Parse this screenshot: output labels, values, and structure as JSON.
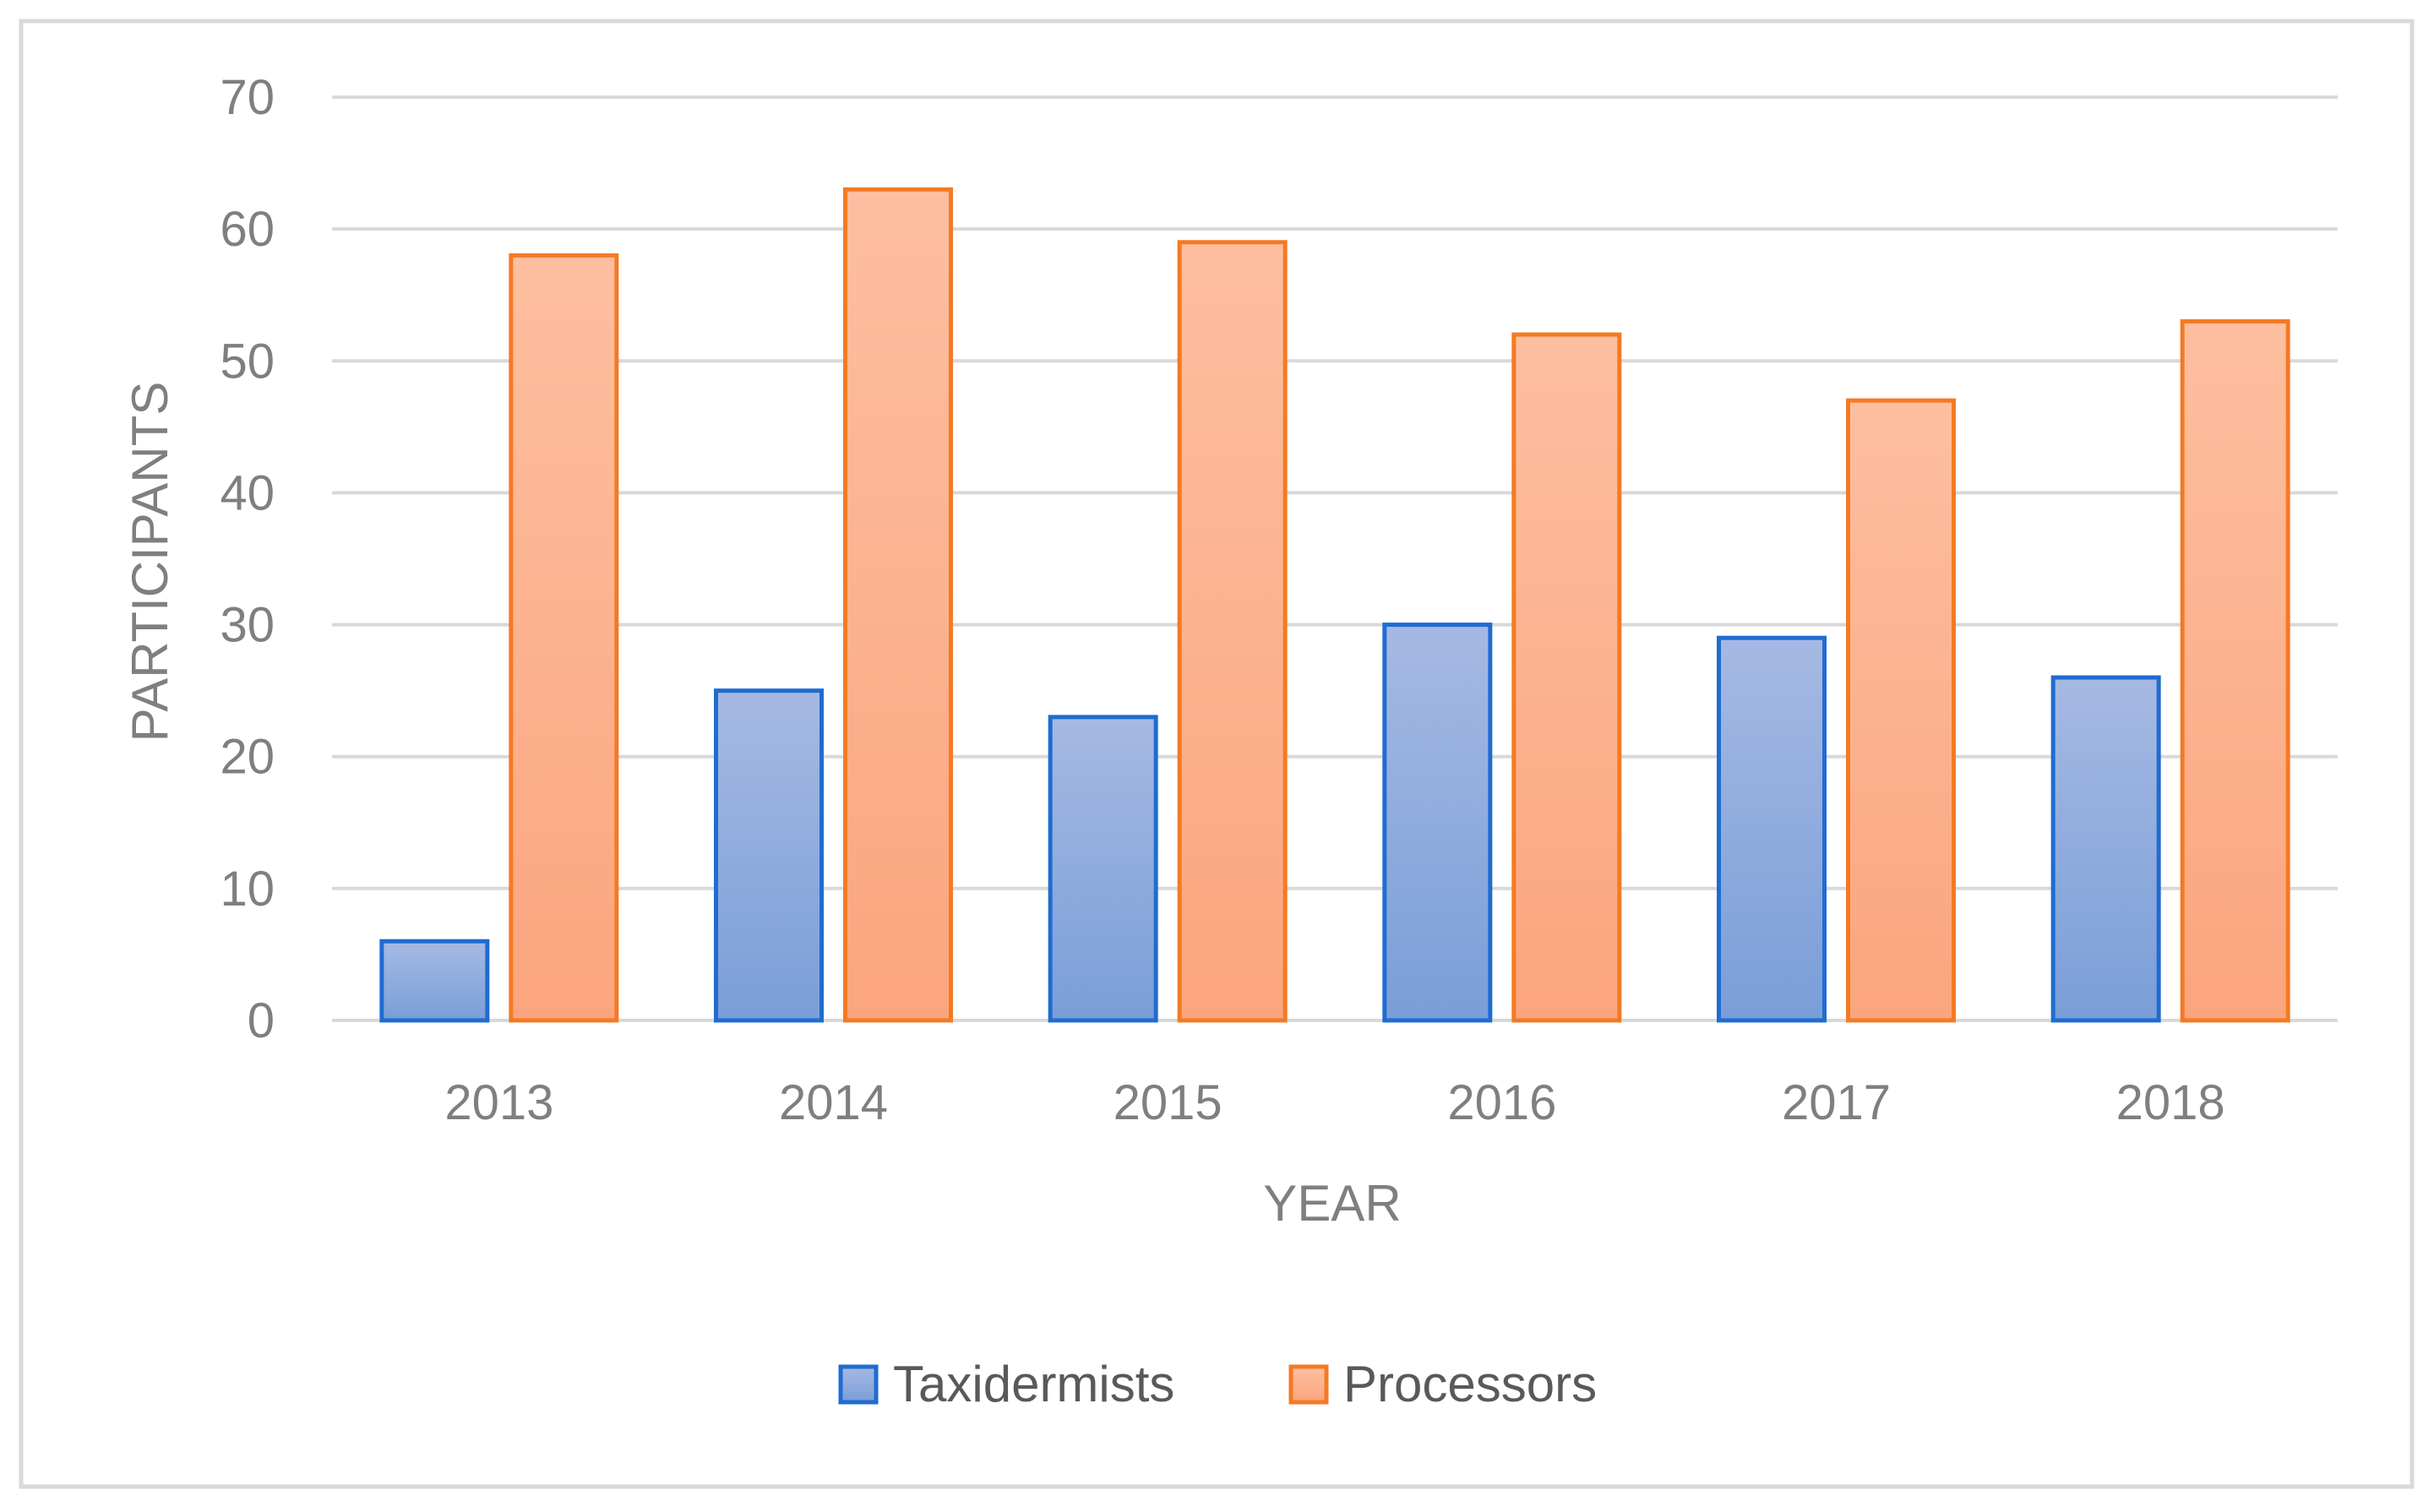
{
  "chart_data": {
    "type": "bar",
    "title": "",
    "xlabel": "YEAR",
    "ylabel": "PARTICIPANTS",
    "categories": [
      "2013",
      "2014",
      "2015",
      "2016",
      "2017",
      "2018"
    ],
    "series": [
      {
        "name": "Taxidermists",
        "values": [
          6,
          25,
          23,
          30,
          29,
          26
        ]
      },
      {
        "name": "Processors",
        "values": [
          58,
          63,
          59,
          52,
          47,
          53
        ]
      }
    ],
    "ylim": [
      0,
      70
    ],
    "yticks": [
      0,
      10,
      20,
      30,
      40,
      50,
      60,
      70
    ],
    "grid": true,
    "legend_position": "bottom",
    "colors": {
      "Taxidermists": {
        "fill_top": "#a6b9e3",
        "fill_bottom": "#7a9ed8",
        "stroke": "#1f6cd1"
      },
      "Processors": {
        "fill_top": "#fdbfa0",
        "fill_bottom": "#fba57e",
        "stroke": "#f47a23"
      }
    }
  }
}
